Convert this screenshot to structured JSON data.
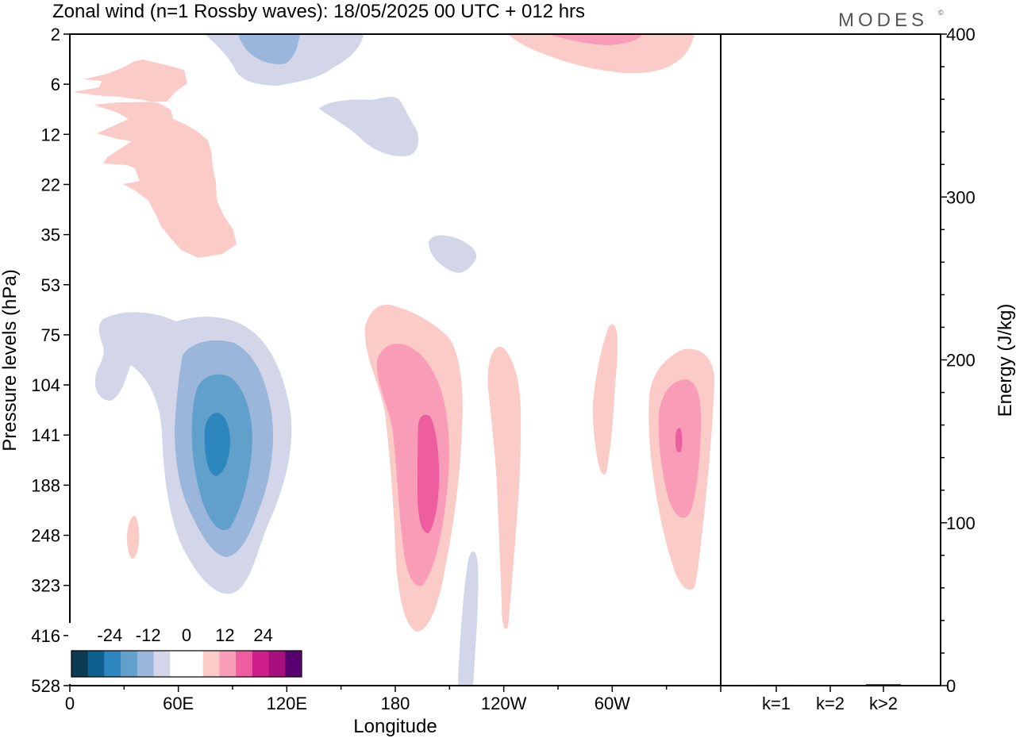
{
  "brand": "MODES",
  "brand_mark": "©",
  "chart_data": [
    {
      "type": "heatmap",
      "title": "Zonal wind (n=1 Rossby waves):  18/05/2025  00 UTC  + 012 hrs",
      "xlabel": "Longitude",
      "ylabel": "Pressure levels (hPa)",
      "x_ticks": [
        "0",
        "60E",
        "120E",
        "180",
        "120W",
        "60W"
      ],
      "x_tick_degrees": [
        0,
        60,
        120,
        180,
        240,
        300
      ],
      "xlim_degrees": [
        0,
        360
      ],
      "y_ticks": [
        "2",
        "6",
        "12",
        "22",
        "35",
        "53",
        "75",
        "104",
        "141",
        "188",
        "248",
        "323",
        "416",
        "528"
      ],
      "colorbar": {
        "tick_labels": [
          "-24",
          "-12",
          "0",
          "12",
          "24"
        ],
        "tick_values": [
          -24,
          -12,
          0,
          12,
          24
        ],
        "levels": [
          -30,
          -26,
          -22,
          -18,
          -14,
          -10,
          -6,
          0,
          0,
          6,
          10,
          14,
          18,
          22,
          26
        ],
        "colors": [
          "#0b3a55",
          "#0d5f8f",
          "#2e86bf",
          "#62a0cc",
          "#9ab6da",
          "#d3d6e8",
          "#ffffff",
          "#ffffff",
          "#fbcbc7",
          "#f89cb8",
          "#ee5e9e",
          "#d01f8b",
          "#a70f7e",
          "#5b0070"
        ]
      },
      "features": [
        {
          "sign": "negative",
          "lon_center": 80,
          "pressure_center_hPa": 141,
          "peak_value": -16
        },
        {
          "sign": "positive",
          "lon_center": 193,
          "pressure_center_hPa": 170,
          "peak_value": 12
        },
        {
          "sign": "positive",
          "lon_center": 318,
          "pressure_center_hPa": 141,
          "peak_value": 14
        },
        {
          "sign": "positive",
          "lon_center": 237,
          "pressure_center_hPa": 160,
          "peak_value": 4
        },
        {
          "sign": "positive",
          "lon_center": 285,
          "pressure_center_hPa": 120,
          "peak_value": 4
        },
        {
          "sign": "negative",
          "lon_center": 113,
          "pressure_center_hPa": 2,
          "peak_value": -10
        },
        {
          "sign": "positive",
          "lon_center": 290,
          "pressure_center_hPa": 2,
          "peak_value": 10
        },
        {
          "sign": "positive",
          "lon_center": 55,
          "pressure_center_hPa": 15,
          "peak_value": 4
        }
      ]
    },
    {
      "type": "bar",
      "ylabel": "Energy (J/kg)",
      "categories": [
        "k=1",
        "k=2",
        "k>2"
      ],
      "values": [
        0.5,
        0.3,
        0.8
      ],
      "ylim": [
        0,
        400
      ],
      "y_ticks": [
        "0",
        "100",
        "200",
        "300",
        "400"
      ],
      "y_tick_values": [
        0,
        100,
        200,
        300,
        400
      ]
    }
  ]
}
